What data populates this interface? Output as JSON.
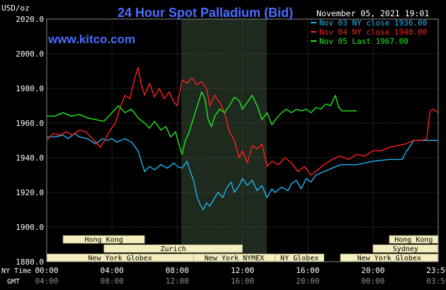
{
  "header": {
    "title": "24 Hour Spot Palladium (Bid)",
    "unit": "USD/oz",
    "timestamp": "November 05, 2021 19:01",
    "website": "www.kitco.com"
  },
  "colors": {
    "background": "#000000",
    "plot_area": "#000000",
    "grid": "#555555",
    "market_shade": "#1d2a1d",
    "title": "#4a6cff",
    "website": "#4a6cff",
    "axis_text": "#ffffff",
    "ticks_sub": "#8c8c8c",
    "session_bar": "#f4eebe",
    "session_text": "#000000",
    "nov03": "#22b2ee",
    "nov04": "#ff1e1e",
    "nov05": "#22e822"
  },
  "legend": [
    {
      "label": "Nov 03 NY close 1936.00",
      "color": "#22b2ee"
    },
    {
      "label": "Nov 04 NY close 1940.00",
      "color": "#ff1e1e"
    },
    {
      "label": "Nov 05 Last 1967.00",
      "color": "#22e822"
    }
  ],
  "axes": {
    "row_label_ny": "NY Time",
    "row_label_gmt": "GMT",
    "y_ticks": [
      "2020.0",
      "2000.0",
      "1980.0",
      "1960.0",
      "1940.0",
      "1920.0",
      "1900.0",
      "1880.0"
    ],
    "x_ticks_ny": [
      "00:00",
      "04:00",
      "08:00",
      "12:00",
      "16:00",
      "20:00",
      "23:59"
    ],
    "x_ticks_gmt": [
      "04:00",
      "08:00",
      "12:00",
      "16:00",
      "20:00",
      "00:00",
      "03:59"
    ]
  },
  "sessions": [
    {
      "label": "Hong Kong",
      "row": 0,
      "start": 1.0,
      "end": 6.0
    },
    {
      "label": "Hong Kong",
      "row": 0,
      "start": 21.0,
      "end": 23.99
    },
    {
      "label": "Zurich",
      "row": 1,
      "start": 3.5,
      "end": 12.0
    },
    {
      "label": "Sydney",
      "row": 1,
      "start": 20.0,
      "end": 23.99
    },
    {
      "label": "New York Globex",
      "row": 2,
      "start": 0.0,
      "end": 9.0
    },
    {
      "label": "New York NYMEX",
      "row": 2,
      "start": 9.0,
      "end": 14.0
    },
    {
      "label": "NY Globex",
      "row": 2,
      "start": 14.0,
      "end": 17.0
    },
    {
      "label": "New York Globex",
      "row": 2,
      "start": 18.0,
      "end": 23.99
    }
  ],
  "chart_data": {
    "type": "line",
    "title": "24 Hour Spot Palladium (Bid)",
    "ylabel": "USD/oz",
    "xlabel": "NY Time",
    "xlim": [
      0,
      24
    ],
    "ylim": [
      1880,
      2020
    ],
    "shaded_x": [
      8.25,
      13.5
    ],
    "grid": true,
    "legend_position": "top-right",
    "series": [
      {
        "name": "Nov 03 NY close 1936.00",
        "color": "#22b2ee",
        "points": [
          [
            0.0,
            1952
          ],
          [
            0.5,
            1952
          ],
          [
            1.0,
            1953
          ],
          [
            1.3,
            1951
          ],
          [
            1.7,
            1954
          ],
          [
            2.0,
            1952
          ],
          [
            2.5,
            1951
          ],
          [
            3.0,
            1948
          ],
          [
            3.4,
            1951
          ],
          [
            3.7,
            1950
          ],
          [
            4.0,
            1951
          ],
          [
            4.3,
            1949
          ],
          [
            4.8,
            1951
          ],
          [
            5.2,
            1949
          ],
          [
            5.6,
            1944
          ],
          [
            5.8,
            1938
          ],
          [
            6.0,
            1932
          ],
          [
            6.3,
            1935
          ],
          [
            6.6,
            1933
          ],
          [
            7.0,
            1936
          ],
          [
            7.4,
            1934
          ],
          [
            7.8,
            1937
          ],
          [
            8.0,
            1935
          ],
          [
            8.3,
            1934
          ],
          [
            8.6,
            1938
          ],
          [
            8.8,
            1932
          ],
          [
            9.0,
            1927
          ],
          [
            9.2,
            1918
          ],
          [
            9.4,
            1913
          ],
          [
            9.6,
            1910
          ],
          [
            9.8,
            1914
          ],
          [
            10.0,
            1912
          ],
          [
            10.3,
            1917
          ],
          [
            10.5,
            1920
          ],
          [
            10.8,
            1917
          ],
          [
            11.0,
            1922
          ],
          [
            11.3,
            1926
          ],
          [
            11.5,
            1920
          ],
          [
            11.8,
            1924
          ],
          [
            12.0,
            1928
          ],
          [
            12.3,
            1924
          ],
          [
            12.6,
            1927
          ],
          [
            12.9,
            1921
          ],
          [
            13.2,
            1924
          ],
          [
            13.5,
            1917
          ],
          [
            13.8,
            1922
          ],
          [
            14.0,
            1920
          ],
          [
            14.4,
            1923
          ],
          [
            14.8,
            1921
          ],
          [
            15.0,
            1925
          ],
          [
            15.3,
            1927
          ],
          [
            15.6,
            1922
          ],
          [
            15.9,
            1928
          ],
          [
            16.2,
            1926
          ],
          [
            16.5,
            1930
          ],
          [
            17.0,
            1932
          ],
          [
            17.5,
            1934
          ],
          [
            18.0,
            1936
          ],
          [
            19.0,
            1936
          ],
          [
            20.0,
            1938
          ],
          [
            21.0,
            1939
          ],
          [
            21.8,
            1939
          ],
          [
            22.0,
            1943
          ],
          [
            22.3,
            1947
          ],
          [
            22.5,
            1950
          ],
          [
            23.0,
            1950
          ],
          [
            23.99,
            1950
          ]
        ]
      },
      {
        "name": "Nov 04 NY close 1940.00",
        "color": "#ff1e1e",
        "points": [
          [
            0.0,
            1950
          ],
          [
            0.4,
            1954
          ],
          [
            0.8,
            1953
          ],
          [
            1.2,
            1955
          ],
          [
            1.6,
            1953
          ],
          [
            2.0,
            1956
          ],
          [
            2.4,
            1955
          ],
          [
            2.7,
            1952
          ],
          [
            3.0,
            1949
          ],
          [
            3.3,
            1946
          ],
          [
            3.6,
            1951
          ],
          [
            3.9,
            1956
          ],
          [
            4.2,
            1960
          ],
          [
            4.5,
            1969
          ],
          [
            4.8,
            1976
          ],
          [
            5.1,
            1974
          ],
          [
            5.4,
            1986
          ],
          [
            5.6,
            1992
          ],
          [
            5.8,
            1982
          ],
          [
            6.0,
            1976
          ],
          [
            6.3,
            1983
          ],
          [
            6.6,
            1975
          ],
          [
            6.9,
            1980
          ],
          [
            7.2,
            1974
          ],
          [
            7.5,
            1978
          ],
          [
            7.8,
            1972
          ],
          [
            8.0,
            1970
          ],
          [
            8.3,
            1985
          ],
          [
            8.6,
            1983
          ],
          [
            8.9,
            1986
          ],
          [
            9.2,
            1982
          ],
          [
            9.5,
            1984
          ],
          [
            9.8,
            1980
          ],
          [
            10.0,
            1970
          ],
          [
            10.3,
            1976
          ],
          [
            10.6,
            1972
          ],
          [
            10.9,
            1966
          ],
          [
            11.2,
            1955
          ],
          [
            11.5,
            1950
          ],
          [
            11.8,
            1940
          ],
          [
            12.0,
            1944
          ],
          [
            12.3,
            1937
          ],
          [
            12.6,
            1947
          ],
          [
            12.9,
            1945
          ],
          [
            13.2,
            1948
          ],
          [
            13.5,
            1935
          ],
          [
            13.8,
            1938
          ],
          [
            14.2,
            1936
          ],
          [
            14.6,
            1940
          ],
          [
            15.0,
            1937
          ],
          [
            15.4,
            1932
          ],
          [
            15.8,
            1935
          ],
          [
            16.2,
            1930
          ],
          [
            16.6,
            1933
          ],
          [
            17.0,
            1936
          ],
          [
            17.5,
            1939
          ],
          [
            18.0,
            1941
          ],
          [
            18.5,
            1939
          ],
          [
            19.0,
            1942
          ],
          [
            19.5,
            1941
          ],
          [
            20.0,
            1944
          ],
          [
            20.5,
            1944
          ],
          [
            21.0,
            1946
          ],
          [
            21.5,
            1947
          ],
          [
            22.0,
            1948
          ],
          [
            22.5,
            1950
          ],
          [
            23.0,
            1950
          ],
          [
            23.3,
            1951
          ],
          [
            23.4,
            1960
          ],
          [
            23.5,
            1967
          ],
          [
            23.7,
            1968
          ],
          [
            23.99,
            1966
          ]
        ]
      },
      {
        "name": "Nov 05 Last 1967.00",
        "color": "#22e822",
        "points": [
          [
            0.0,
            1964
          ],
          [
            0.5,
            1964
          ],
          [
            1.0,
            1966
          ],
          [
            1.5,
            1964
          ],
          [
            2.0,
            1965
          ],
          [
            2.5,
            1963
          ],
          [
            3.0,
            1962
          ],
          [
            3.5,
            1961
          ],
          [
            4.0,
            1966
          ],
          [
            4.4,
            1970
          ],
          [
            4.8,
            1966
          ],
          [
            5.2,
            1968
          ],
          [
            5.6,
            1963
          ],
          [
            6.0,
            1960
          ],
          [
            6.3,
            1957
          ],
          [
            6.6,
            1961
          ],
          [
            7.0,
            1956
          ],
          [
            7.3,
            1958
          ],
          [
            7.6,
            1952
          ],
          [
            7.9,
            1955
          ],
          [
            8.1,
            1948
          ],
          [
            8.3,
            1942
          ],
          [
            8.5,
            1950
          ],
          [
            8.7,
            1954
          ],
          [
            8.9,
            1960
          ],
          [
            9.1,
            1966
          ],
          [
            9.3,
            1972
          ],
          [
            9.5,
            1978
          ],
          [
            9.7,
            1974
          ],
          [
            9.9,
            1962
          ],
          [
            10.1,
            1958
          ],
          [
            10.3,
            1964
          ],
          [
            10.6,
            1968
          ],
          [
            10.9,
            1966
          ],
          [
            11.2,
            1970
          ],
          [
            11.5,
            1975
          ],
          [
            11.8,
            1973
          ],
          [
            12.0,
            1968
          ],
          [
            12.3,
            1972
          ],
          [
            12.6,
            1976
          ],
          [
            12.9,
            1970
          ],
          [
            13.2,
            1962
          ],
          [
            13.5,
            1966
          ],
          [
            13.8,
            1959
          ],
          [
            14.1,
            1963
          ],
          [
            14.4,
            1966
          ],
          [
            14.7,
            1968
          ],
          [
            15.0,
            1966
          ],
          [
            15.3,
            1968
          ],
          [
            15.6,
            1967
          ],
          [
            15.9,
            1968
          ],
          [
            16.2,
            1966
          ],
          [
            16.5,
            1969
          ],
          [
            16.8,
            1968
          ],
          [
            17.1,
            1971
          ],
          [
            17.4,
            1970
          ],
          [
            17.7,
            1976
          ],
          [
            17.9,
            1969
          ],
          [
            18.1,
            1967
          ],
          [
            19.0,
            1967
          ]
        ]
      }
    ]
  }
}
